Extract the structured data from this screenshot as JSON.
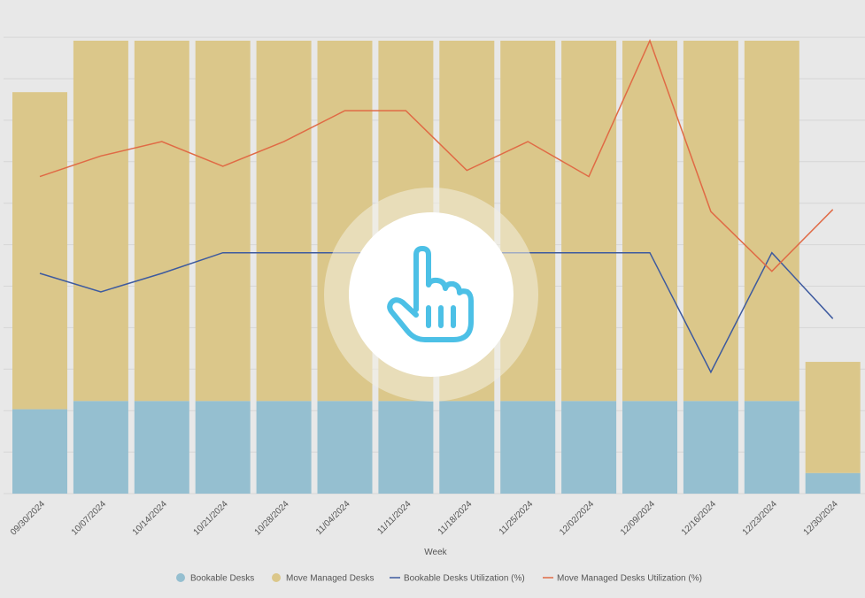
{
  "chart_data": {
    "type": "bar",
    "stacked": true,
    "xlabel": "Week",
    "ylabel": "",
    "ylim": [
      0,
      110
    ],
    "y2lim": [
      0,
      110
    ],
    "grid": true,
    "legend_position": "bottom",
    "categories": [
      "09/30/2024",
      "10/07/2024",
      "10/14/2024",
      "10/21/2024",
      "10/28/2024",
      "11/04/2024",
      "11/11/2024",
      "11/18/2024",
      "11/25/2024",
      "12/02/2024",
      "12/09/2024",
      "12/16/2024",
      "12/23/2024",
      "12/30/2024"
    ],
    "series": [
      {
        "name": "Bookable Desks",
        "type": "bar",
        "color": "#95bfd0",
        "values": [
          20.5,
          22.5,
          22.5,
          22.5,
          22.5,
          22.5,
          22.5,
          22.5,
          22.5,
          22.5,
          22.5,
          22.5,
          22.5,
          5
        ]
      },
      {
        "name": "Move Managed Desks",
        "type": "bar",
        "color": "#dbc78a",
        "values": [
          77,
          87.5,
          87.5,
          87.5,
          87.5,
          87.5,
          87.5,
          87.5,
          87.5,
          87.5,
          87.5,
          87.5,
          87.5,
          27
        ]
      },
      {
        "name": "Bookable Desks Utilization (%)",
        "type": "line",
        "color": "#3d5a9f",
        "values": [
          53.5,
          49,
          53.5,
          58.5,
          58.5,
          58.5,
          58.5,
          58.5,
          58.5,
          58.5,
          58.5,
          29.5,
          58.5,
          42.5
        ]
      },
      {
        "name": "Move Managed Desks Utilization (%)",
        "type": "line",
        "color": "#e06a45",
        "values": [
          77,
          82,
          85.5,
          79.5,
          85.5,
          93,
          93,
          78.5,
          85.5,
          77,
          110,
          68.5,
          54,
          69
        ]
      }
    ]
  },
  "overlay": {
    "icon": "pointer-hand-icon"
  }
}
